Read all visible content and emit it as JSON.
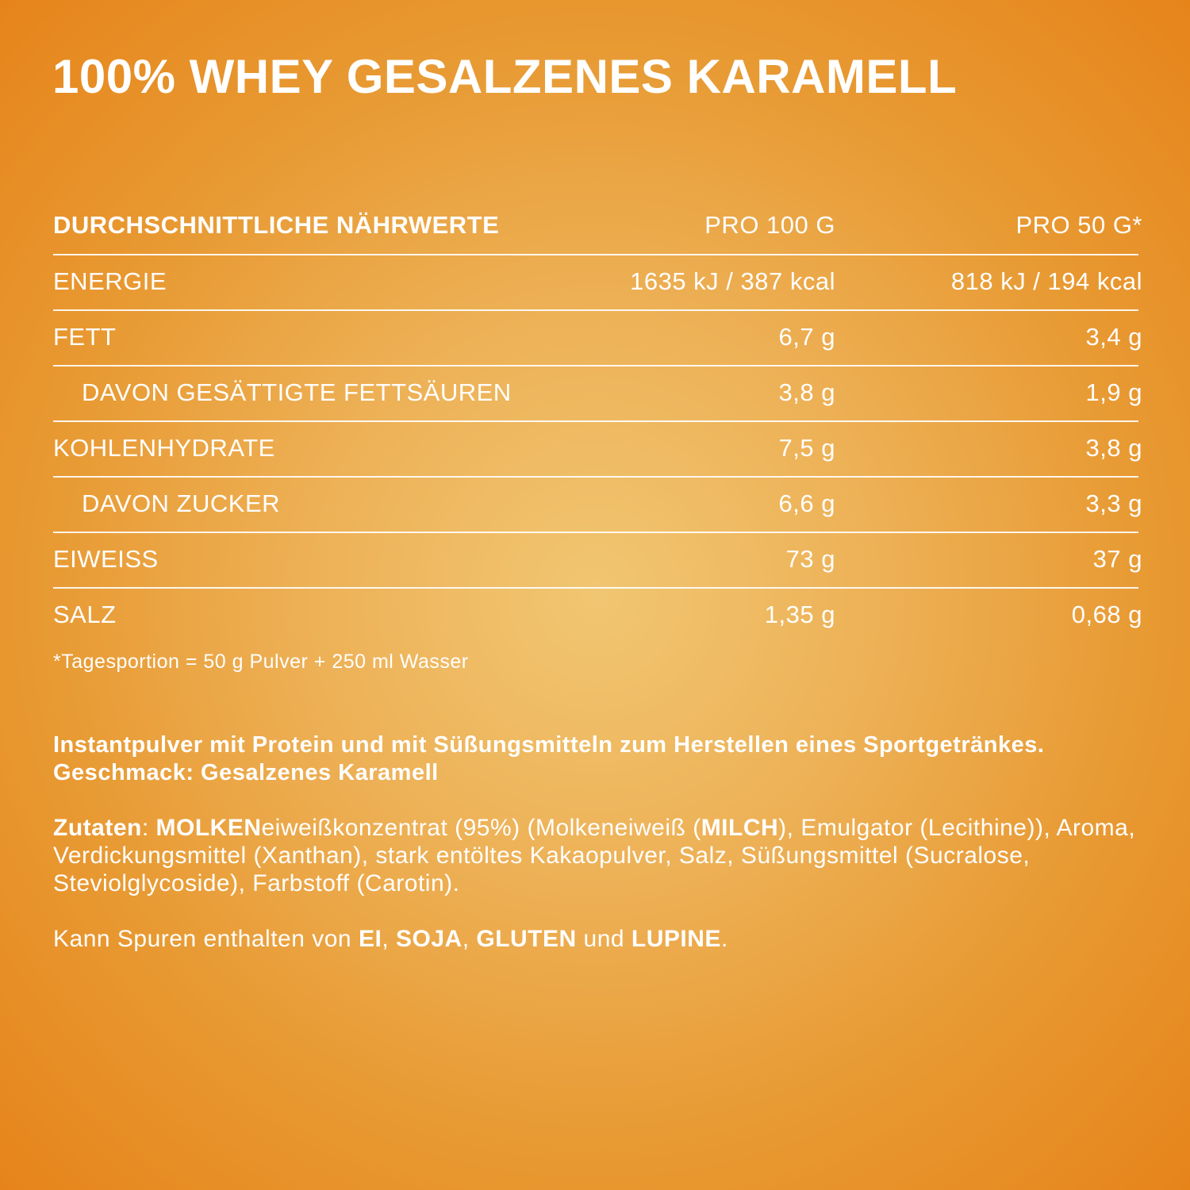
{
  "header": {
    "title": "100% WHEY GESALZENES KARAMELL"
  },
  "table": {
    "columns": [
      "DURCHSCHNITTLICHE NÄHRWERTE",
      "PRO 100 G",
      "PRO 50 G*"
    ],
    "rows": [
      {
        "label": "ENERGIE",
        "indent": false,
        "values": [
          "1635 kJ / 387 kcal",
          "818 kJ / 194 kcal"
        ]
      },
      {
        "label": "FETT",
        "indent": false,
        "values": [
          "6,7 g",
          "3,4 g"
        ]
      },
      {
        "label": "DAVON GESÄTTIGTE  FETTSÄUREN",
        "indent": true,
        "values": [
          "3,8 g",
          "1,9 g"
        ]
      },
      {
        "label": "KOHLENHYDRATE",
        "indent": false,
        "values": [
          "7,5 g",
          "3,8 g"
        ]
      },
      {
        "label": "DAVON ZUCKER",
        "indent": true,
        "values": [
          "6,6 g",
          "3,3 g"
        ]
      },
      {
        "label": "EIWEISS",
        "indent": false,
        "values": [
          "73 g",
          "37 g"
        ]
      },
      {
        "label": "SALZ",
        "indent": false,
        "values": [
          "1,35 g",
          "0,68 g"
        ]
      }
    ],
    "footnote": "*Tagesportion = 50 g Pulver + 250 ml Wasser"
  },
  "description": "Instantpulver mit Protein und mit Süßungsmitteln zum Herstellen eines Sportgetränkes. Geschmack: Gesalzenes Karamell",
  "ingredients": [
    {
      "text": "Zutaten",
      "bold": true
    },
    {
      "text": ": ",
      "bold": false
    },
    {
      "text": "MOLKEN",
      "bold": true
    },
    {
      "text": "eiweißkonzentrat (95%) (Molkeneiweiß (",
      "bold": false
    },
    {
      "text": "MILCH",
      "bold": true
    },
    {
      "text": "), Emulgator (Lecithine)), Aroma, Verdickungsmittel (Xanthan), stark entöltes Kakaopulver, Salz, Süßungsmittel (Sucralose, Steviolglycoside), Farbstoff (Carotin).",
      "bold": false
    }
  ],
  "allergens": [
    {
      "text": "Kann Spuren enthalten von ",
      "bold": false
    },
    {
      "text": "EI",
      "bold": true
    },
    {
      "text": ", ",
      "bold": false
    },
    {
      "text": "SOJA",
      "bold": true
    },
    {
      "text": ", ",
      "bold": false
    },
    {
      "text": "GLUTEN",
      "bold": true
    },
    {
      "text": " und ",
      "bold": false
    },
    {
      "text": "LUPINE",
      "bold": true
    },
    {
      "text": ".",
      "bold": false
    }
  ]
}
